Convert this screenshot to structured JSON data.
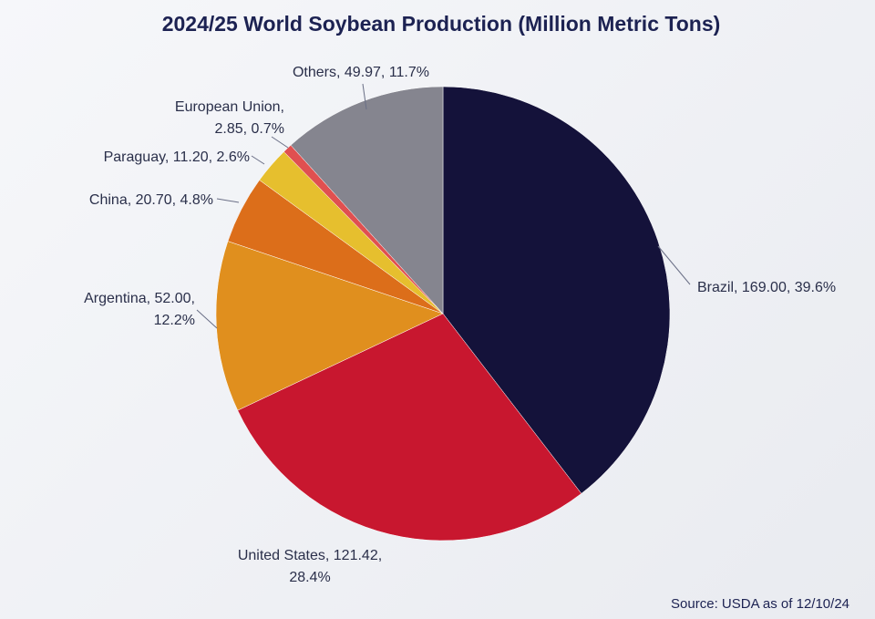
{
  "chart_data": {
    "type": "pie",
    "title": "2024/25 World Soybean Production (Million Metric Tons)",
    "source": "Source: USDA as of 12/10/24",
    "slices": [
      {
        "name": "Brazil",
        "value": 169.0,
        "percent": "39.6%",
        "color": "#14123a",
        "label_lines": [
          "Brazil, 169.00, 39.6%"
        ]
      },
      {
        "name": "United States",
        "value": 121.42,
        "percent": "28.4%",
        "color": "#c8172f",
        "label_lines": [
          "United States, 121.42,",
          "28.4%"
        ]
      },
      {
        "name": "Argentina",
        "value": 52.0,
        "percent": "12.2%",
        "color": "#e08f1e",
        "label_lines": [
          "Argentina, 52.00,",
          "12.2%"
        ]
      },
      {
        "name": "China",
        "value": 20.7,
        "percent": "4.8%",
        "color": "#dc6e1a",
        "label_lines": [
          "China, 20.70, 4.8%"
        ]
      },
      {
        "name": "Paraguay",
        "value": 11.2,
        "percent": "2.6%",
        "color": "#e6bf2e",
        "label_lines": [
          "Paraguay, 11.20, 2.6%"
        ]
      },
      {
        "name": "European Union",
        "value": 2.85,
        "percent": "0.7%",
        "color": "#e05050",
        "label_lines": [
          "European Union,",
          "2.85, 0.7%"
        ]
      },
      {
        "name": "Others",
        "value": 49.97,
        "percent": "11.7%",
        "color": "#85858f",
        "label_lines": [
          "Others, 49.97, 11.7%"
        ]
      }
    ]
  }
}
